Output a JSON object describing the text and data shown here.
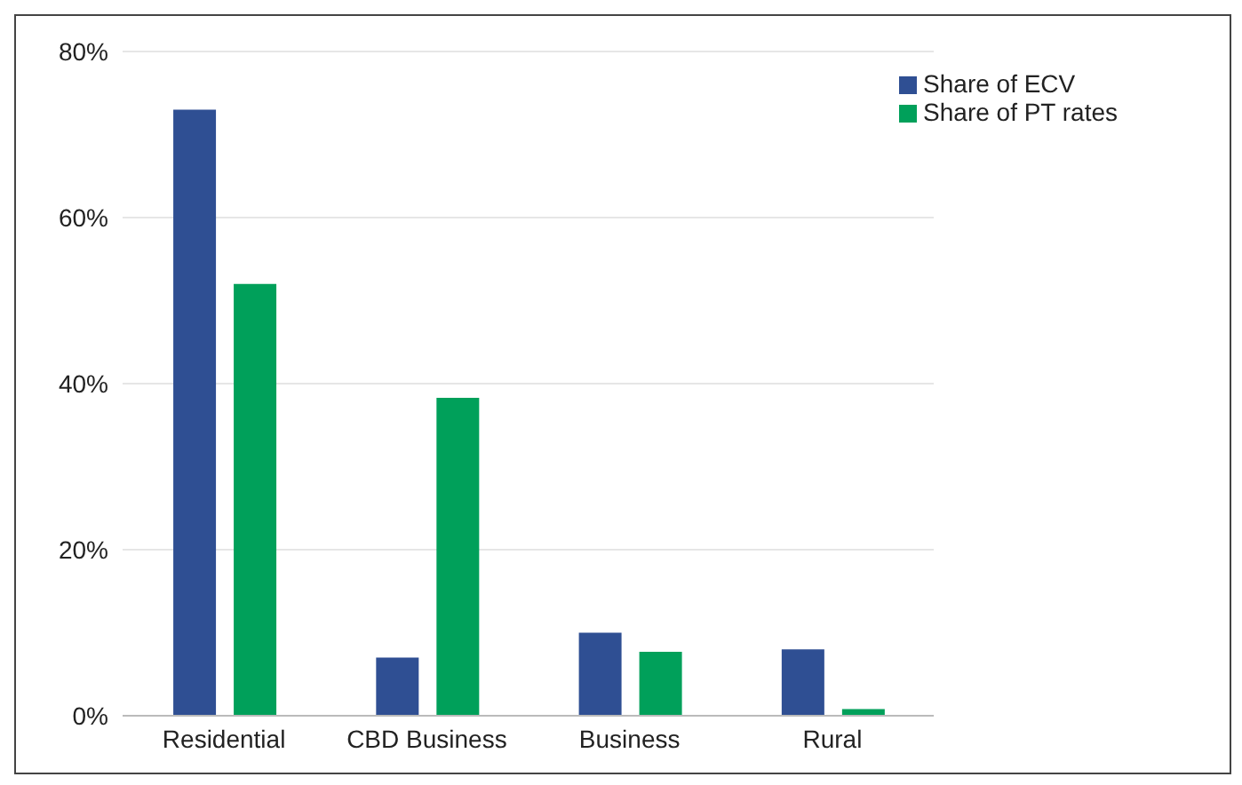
{
  "chart_data": {
    "type": "bar",
    "categories": [
      "Residential",
      "CBD Business",
      "Business",
      "Rural"
    ],
    "series": [
      {
        "name": "Share of ECV",
        "color": "#2f4f93",
        "values": [
          73,
          7,
          10,
          8
        ]
      },
      {
        "name": "Share of PT rates",
        "color": "#00a05a",
        "values": [
          52,
          38.3,
          7.7,
          0.8
        ]
      }
    ],
    "ylim": [
      0,
      80
    ],
    "yticks": [
      {
        "value": 0,
        "label": "0%"
      },
      {
        "value": 20,
        "label": "20%"
      },
      {
        "value": 40,
        "label": "40%"
      },
      {
        "value": 60,
        "label": "60%"
      },
      {
        "value": 80,
        "label": "80%"
      }
    ],
    "grid": "y",
    "legend": "top right"
  }
}
